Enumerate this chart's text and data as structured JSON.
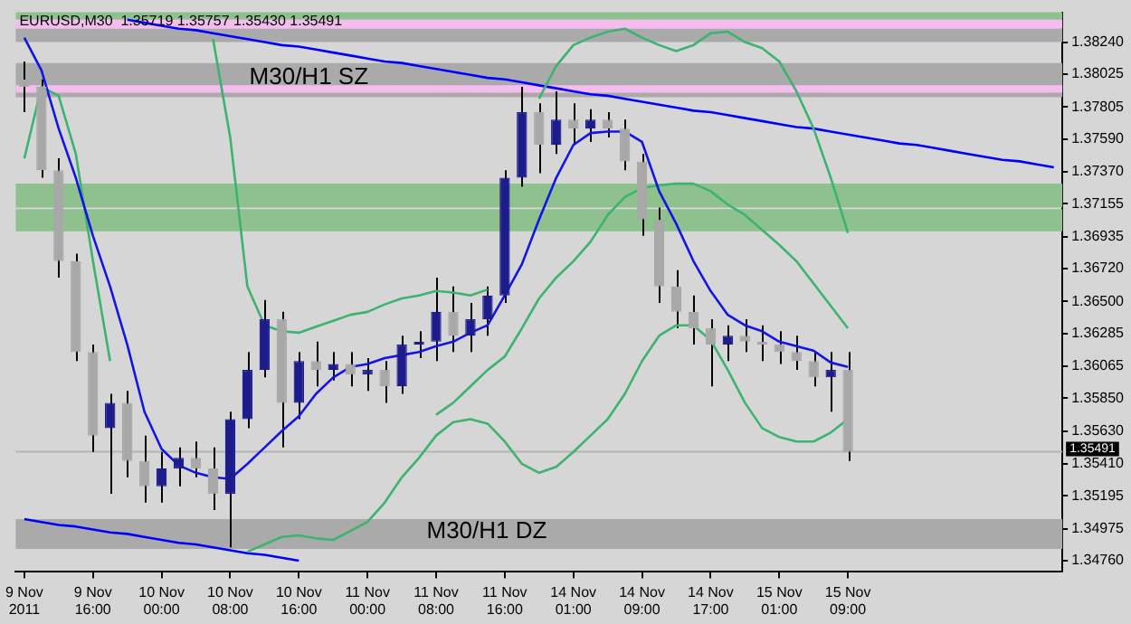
{
  "chart_data": {
    "type": "candlestick",
    "title": "EURUSD,M30  1.35719 1.35757 1.35430 1.35491",
    "categories": [
      "9 Nov 2011",
      null,
      null,
      null,
      "9 Nov 16:00",
      null,
      null,
      null,
      "10 Nov 00:00",
      null,
      null,
      null,
      "10 Nov 08:00",
      null,
      null,
      null,
      "10 Nov 16:00",
      null,
      null,
      null,
      "11 Nov 00:00",
      null,
      null,
      null,
      "11 Nov 08:00",
      null,
      null,
      null,
      "11 Nov 16:00",
      null,
      null,
      null,
      "14 Nov 01:00",
      null,
      null,
      null,
      "14 Nov 09:00",
      null,
      null,
      null,
      "14 Nov 17:00",
      null,
      null,
      null,
      "15 Nov 01:00",
      null,
      null,
      null,
      "15 Nov 09:00",
      null,
      null,
      null,
      null,
      null,
      null,
      null,
      null,
      null,
      null,
      null,
      null
    ],
    "series": [
      {
        "type": "candlestick",
        "colors": [
          "#a8a8a8",
          "#a8a8a8",
          "#a8a8a8",
          "#a8a8a8",
          "#a8a8a8",
          "#1c1c8c",
          "#a8a8a8",
          "#a8a8a8",
          "#1c1c8c",
          "#1c1c8c",
          "#a8a8a8",
          "#a8a8a8",
          "#1c1c8c",
          "#1c1c8c",
          "#1c1c8c",
          "#a8a8a8",
          "#1c1c8c",
          "#a8a8a8",
          "#1c1c8c",
          "#a8a8a8",
          "#1c1c8c",
          "#a8a8a8",
          "#1c1c8c",
          "#1c1c8c",
          "#1c1c8c",
          "#a8a8a8",
          "#1c1c8c",
          "#1c1c8c",
          "#1c1c8c",
          "#1c1c8c",
          "#a8a8a8",
          "#1c1c8c",
          "#a8a8a8",
          "#1c1c8c",
          "#a8a8a8",
          "#a8a8a8",
          "#a8a8a8",
          "#a8a8a8",
          "#a8a8a8",
          "#a8a8a8",
          "#a8a8a8",
          "#1c1c8c",
          "#a8a8a8",
          "#a8a8a8",
          "#a8a8a8",
          "#a8a8a8",
          "#a8a8a8",
          "#1c1c8c",
          "#a8a8a8",
          null,
          null,
          null,
          null,
          null,
          null,
          null,
          null,
          null,
          null,
          null,
          null
        ],
        "ohlc": [
          [
            1.3799,
            1.3811,
            1.3777,
            1.3794
          ],
          [
            1.3794,
            1.3799,
            1.3733,
            1.3738
          ],
          [
            1.3738,
            1.3746,
            1.3666,
            1.3677
          ],
          [
            1.3677,
            1.3682,
            1.361,
            1.3616
          ],
          [
            1.3616,
            1.3621,
            1.3549,
            1.356
          ],
          [
            1.3565,
            1.3588,
            1.3521,
            1.3582
          ],
          [
            1.3582,
            1.359,
            1.3532,
            1.3543
          ],
          [
            1.3543,
            1.356,
            1.3515,
            1.3526
          ],
          [
            1.3526,
            1.3549,
            1.3515,
            1.3538
          ],
          [
            1.3538,
            1.3552,
            1.3526,
            1.3545
          ],
          [
            1.3545,
            1.3556,
            1.3532,
            1.3538
          ],
          [
            1.3538,
            1.3552,
            1.351,
            1.3521
          ],
          [
            1.3521,
            1.3576,
            1.3485,
            1.3571
          ],
          [
            1.3571,
            1.3616,
            1.3565,
            1.3604
          ],
          [
            1.3604,
            1.3651,
            1.3599,
            1.3638
          ],
          [
            1.3638,
            1.3643,
            1.3552,
            1.3582
          ],
          [
            1.3582,
            1.3616,
            1.3571,
            1.361
          ],
          [
            1.361,
            1.3623,
            1.3593,
            1.3604
          ],
          [
            1.3604,
            1.3616,
            1.3597,
            1.3608
          ],
          [
            1.3608,
            1.3616,
            1.3593,
            1.3601
          ],
          [
            1.3601,
            1.3612,
            1.359,
            1.3604
          ],
          [
            1.3604,
            1.361,
            1.3582,
            1.3593
          ],
          [
            1.3593,
            1.3627,
            1.3588,
            1.3621
          ],
          [
            1.3621,
            1.363,
            1.3612,
            1.3623
          ],
          [
            1.3623,
            1.3666,
            1.361,
            1.3643
          ],
          [
            1.3643,
            1.366,
            1.3616,
            1.3627
          ],
          [
            1.3627,
            1.3649,
            1.3616,
            1.3638
          ],
          [
            1.3638,
            1.366,
            1.3627,
            1.3654
          ],
          [
            1.3654,
            1.3738,
            1.3649,
            1.3733
          ],
          [
            1.3733,
            1.3794,
            1.3727,
            1.3777
          ],
          [
            1.3777,
            1.3783,
            1.3736,
            1.3755
          ],
          [
            1.3755,
            1.3791,
            1.3749,
            1.3772
          ],
          [
            1.3772,
            1.3783,
            1.3755,
            1.3766
          ],
          [
            1.3766,
            1.3779,
            1.3757,
            1.3772
          ],
          [
            1.3772,
            1.3777,
            1.376,
            1.3766
          ],
          [
            1.3766,
            1.3772,
            1.3738,
            1.3744
          ],
          [
            1.3744,
            1.3749,
            1.3694,
            1.3705
          ],
          [
            1.3705,
            1.3713,
            1.3649,
            1.366
          ],
          [
            1.366,
            1.3671,
            1.3632,
            1.3643
          ],
          [
            1.3643,
            1.3654,
            1.3621,
            1.3632
          ],
          [
            1.3632,
            1.3638,
            1.3593,
            1.3621
          ],
          [
            1.3621,
            1.3634,
            1.361,
            1.3627
          ],
          [
            1.3627,
            1.3638,
            1.3616,
            1.3623
          ],
          [
            1.3623,
            1.3634,
            1.361,
            1.3621
          ],
          [
            1.3621,
            1.363,
            1.3608,
            1.3616
          ],
          [
            1.3616,
            1.3627,
            1.3604,
            1.361
          ],
          [
            1.361,
            1.3616,
            1.3593,
            1.3599
          ],
          [
            1.3599,
            1.3616,
            1.3576,
            1.3604
          ],
          [
            1.3604,
            1.3616,
            1.3543,
            1.3549
          ],
          null,
          null,
          null,
          null,
          null,
          null,
          null,
          null,
          null,
          null,
          null,
          null
        ]
      },
      {
        "type": "line",
        "color": "#1414e6",
        "values": [
          1.3827,
          1.3805,
          1.3766,
          1.3733,
          1.3694,
          1.366,
          1.3621,
          1.3576,
          1.3551,
          1.354,
          1.3535,
          1.3532,
          1.3531,
          1.3541,
          1.3552,
          1.3563,
          1.3573,
          1.3588,
          1.3599,
          1.3606,
          1.3608,
          1.3612,
          1.3614,
          1.3616,
          1.362,
          1.3623,
          1.3629,
          1.3634,
          1.3654,
          1.3675,
          1.3705,
          1.3733,
          1.3755,
          1.3763,
          1.3764,
          1.3764,
          1.3757,
          1.3724,
          1.3702,
          1.3677,
          1.3657,
          1.3641,
          1.3634,
          1.363,
          1.3623,
          1.362,
          1.3617,
          1.3609,
          1.3606,
          null,
          null,
          null,
          null,
          null,
          null,
          null,
          null,
          null,
          null,
          null,
          null
        ]
      },
      {
        "type": "line",
        "color": "#3cb371",
        "values": [
          null,
          null,
          null,
          null,
          null,
          null,
          null,
          null,
          null,
          null,
          null,
          1.3826,
          1.376,
          1.366,
          1.3634,
          1.363,
          1.3629,
          1.3633,
          1.3637,
          1.3641,
          1.3643,
          1.3648,
          1.3652,
          1.3654,
          1.3657,
          1.3656,
          1.3654,
          1.3658,
          null,
          null,
          1.3786,
          1.3808,
          1.3822,
          1.3827,
          1.3831,
          1.3833,
          1.3827,
          1.3822,
          1.3818,
          1.3822,
          1.383,
          1.3831,
          1.3824,
          1.382,
          1.3811,
          1.3791,
          1.3766,
          1.3733,
          1.3696,
          null,
          null,
          null,
          null,
          null,
          null,
          null,
          null,
          null,
          null,
          null,
          null
        ]
      },
      {
        "type": "line",
        "color": "#3cb371",
        "values": [
          1.3746,
          1.3794,
          1.3788,
          1.3749,
          1.3677,
          1.361,
          null,
          null,
          null,
          null,
          null,
          null,
          null,
          1.3482,
          1.3487,
          1.3492,
          1.3493,
          1.3491,
          1.349,
          1.3496,
          1.3502,
          1.3515,
          1.3532,
          1.3545,
          1.356,
          1.3569,
          1.3571,
          1.3568,
          1.3556,
          1.3541,
          1.3535,
          1.3539,
          1.3549,
          1.356,
          1.3571,
          1.3588,
          1.361,
          1.3627,
          1.3634,
          1.3634,
          1.3624,
          1.3604,
          1.3582,
          1.3565,
          1.3559,
          1.3556,
          1.3556,
          1.3562,
          1.3571,
          null,
          null,
          null,
          null,
          null,
          null,
          null,
          null,
          null,
          null,
          null,
          null
        ]
      },
      {
        "type": "line",
        "color": "#3cb371",
        "values": [
          null,
          null,
          null,
          null,
          null,
          null,
          null,
          null,
          null,
          null,
          null,
          null,
          null,
          null,
          null,
          null,
          null,
          null,
          null,
          null,
          null,
          null,
          null,
          null,
          1.3574,
          1.3582,
          1.3593,
          1.3604,
          1.3613,
          1.3632,
          1.3652,
          1.3666,
          1.3677,
          1.369,
          1.3708,
          1.372,
          1.3726,
          1.3728,
          1.3729,
          1.3729,
          1.3724,
          1.3715,
          1.3708,
          1.3698,
          1.3688,
          1.3677,
          1.3662,
          1.3647,
          1.3632,
          null,
          null,
          null,
          null,
          null,
          null,
          null,
          null,
          null,
          null,
          null,
          null
        ]
      },
      {
        "type": "line",
        "color": "#0000ff",
        "values": [
          null,
          null,
          null,
          null,
          null,
          null,
          1.3839,
          1.3837,
          1.3835,
          1.3833,
          1.3832,
          1.383,
          1.3828,
          1.3826,
          1.3824,
          1.3822,
          1.3821,
          1.3819,
          1.3817,
          1.3815,
          1.3813,
          1.3811,
          1.381,
          1.3808,
          1.3806,
          1.3804,
          1.3802,
          1.38,
          1.3799,
          1.3797,
          1.3795,
          1.3793,
          1.3791,
          1.3789,
          1.3788,
          1.3786,
          1.3784,
          1.3782,
          1.378,
          1.3778,
          1.3777,
          1.3775,
          1.3773,
          1.3771,
          1.3769,
          1.3767,
          1.3766,
          1.3764,
          1.3762,
          1.376,
          1.3758,
          1.3756,
          1.3755,
          1.3753,
          1.3751,
          1.3749,
          1.3747,
          1.3745,
          1.3744,
          1.3742,
          1.374
        ]
      },
      {
        "type": "line",
        "color": "#0000ff",
        "values": [
          1.3504,
          1.3502,
          1.35,
          1.3499,
          1.3497,
          1.3495,
          1.3494,
          1.3492,
          1.349,
          1.3488,
          1.3487,
          1.3485,
          1.3483,
          1.3481,
          1.348,
          1.3478,
          1.3476,
          null,
          null,
          null,
          null,
          null,
          null,
          null,
          null,
          null,
          null,
          null,
          null,
          null,
          null,
          null,
          null,
          null,
          null,
          null,
          null,
          null,
          null,
          null,
          null,
          null,
          null,
          null,
          null,
          null,
          null,
          null,
          null,
          null,
          null,
          null,
          null,
          null,
          null,
          null,
          null,
          null,
          null,
          null,
          null
        ]
      }
    ],
    "ylim": [
      1.3469,
      1.3844
    ],
    "yticks": [
      {
        "value": 1.3824,
        "label": "1.38240"
      },
      {
        "value": 1.38025,
        "label": "1.38025"
      },
      {
        "value": 1.37805,
        "label": "1.37805"
      },
      {
        "value": 1.3759,
        "label": "1.37590"
      },
      {
        "value": 1.3737,
        "label": "1.37370"
      },
      {
        "value": 1.37155,
        "label": "1.37155"
      },
      {
        "value": 1.36935,
        "label": "1.36935"
      },
      {
        "value": 1.3672,
        "label": "1.36720"
      },
      {
        "value": 1.365,
        "label": "1.36500"
      },
      {
        "value": 1.36285,
        "label": "1.36285"
      },
      {
        "value": 1.36065,
        "label": "1.36065"
      },
      {
        "value": 1.3585,
        "label": "1.35850"
      },
      {
        "value": 1.3563,
        "label": "1.35630"
      },
      {
        "value": 1.3541,
        "label": "1.35410"
      },
      {
        "value": 1.35195,
        "label": "1.35195"
      },
      {
        "value": 1.34975,
        "label": "1.34975"
      },
      {
        "value": 1.3476,
        "label": "1.34760"
      }
    ],
    "bands": [
      {
        "axis": "y",
        "from": 1.3839,
        "to": 1.3844,
        "color": "#8fc18f"
      },
      {
        "axis": "y",
        "from": 1.3833,
        "to": 1.3839,
        "color": "#f4bcef"
      },
      {
        "axis": "y",
        "from": 1.3824,
        "to": 1.3833,
        "color": "#aaaaaa"
      },
      {
        "axis": "y",
        "from": 1.3787,
        "to": 1.381,
        "label": "M30/H1 SZ",
        "color": "#aaaaaa"
      },
      {
        "axis": "y",
        "from": 1.379,
        "to": 1.3795,
        "color": "#f4bcef"
      },
      {
        "axis": "y",
        "from": 1.3713,
        "to": 1.3729,
        "color": "#8fc18f"
      },
      {
        "axis": "y",
        "from": 1.3697,
        "to": 1.3712,
        "color": "#8fc18f"
      },
      {
        "axis": "y",
        "from": 1.3484,
        "to": 1.3504,
        "label": "M30/H1 DZ",
        "color": "#aaaaaa"
      }
    ],
    "ref_lines": [
      {
        "axis": "y",
        "value": 1.35491,
        "label": "1.35491",
        "color": "#b4b4b4"
      }
    ],
    "grid": false,
    "legend": false
  }
}
